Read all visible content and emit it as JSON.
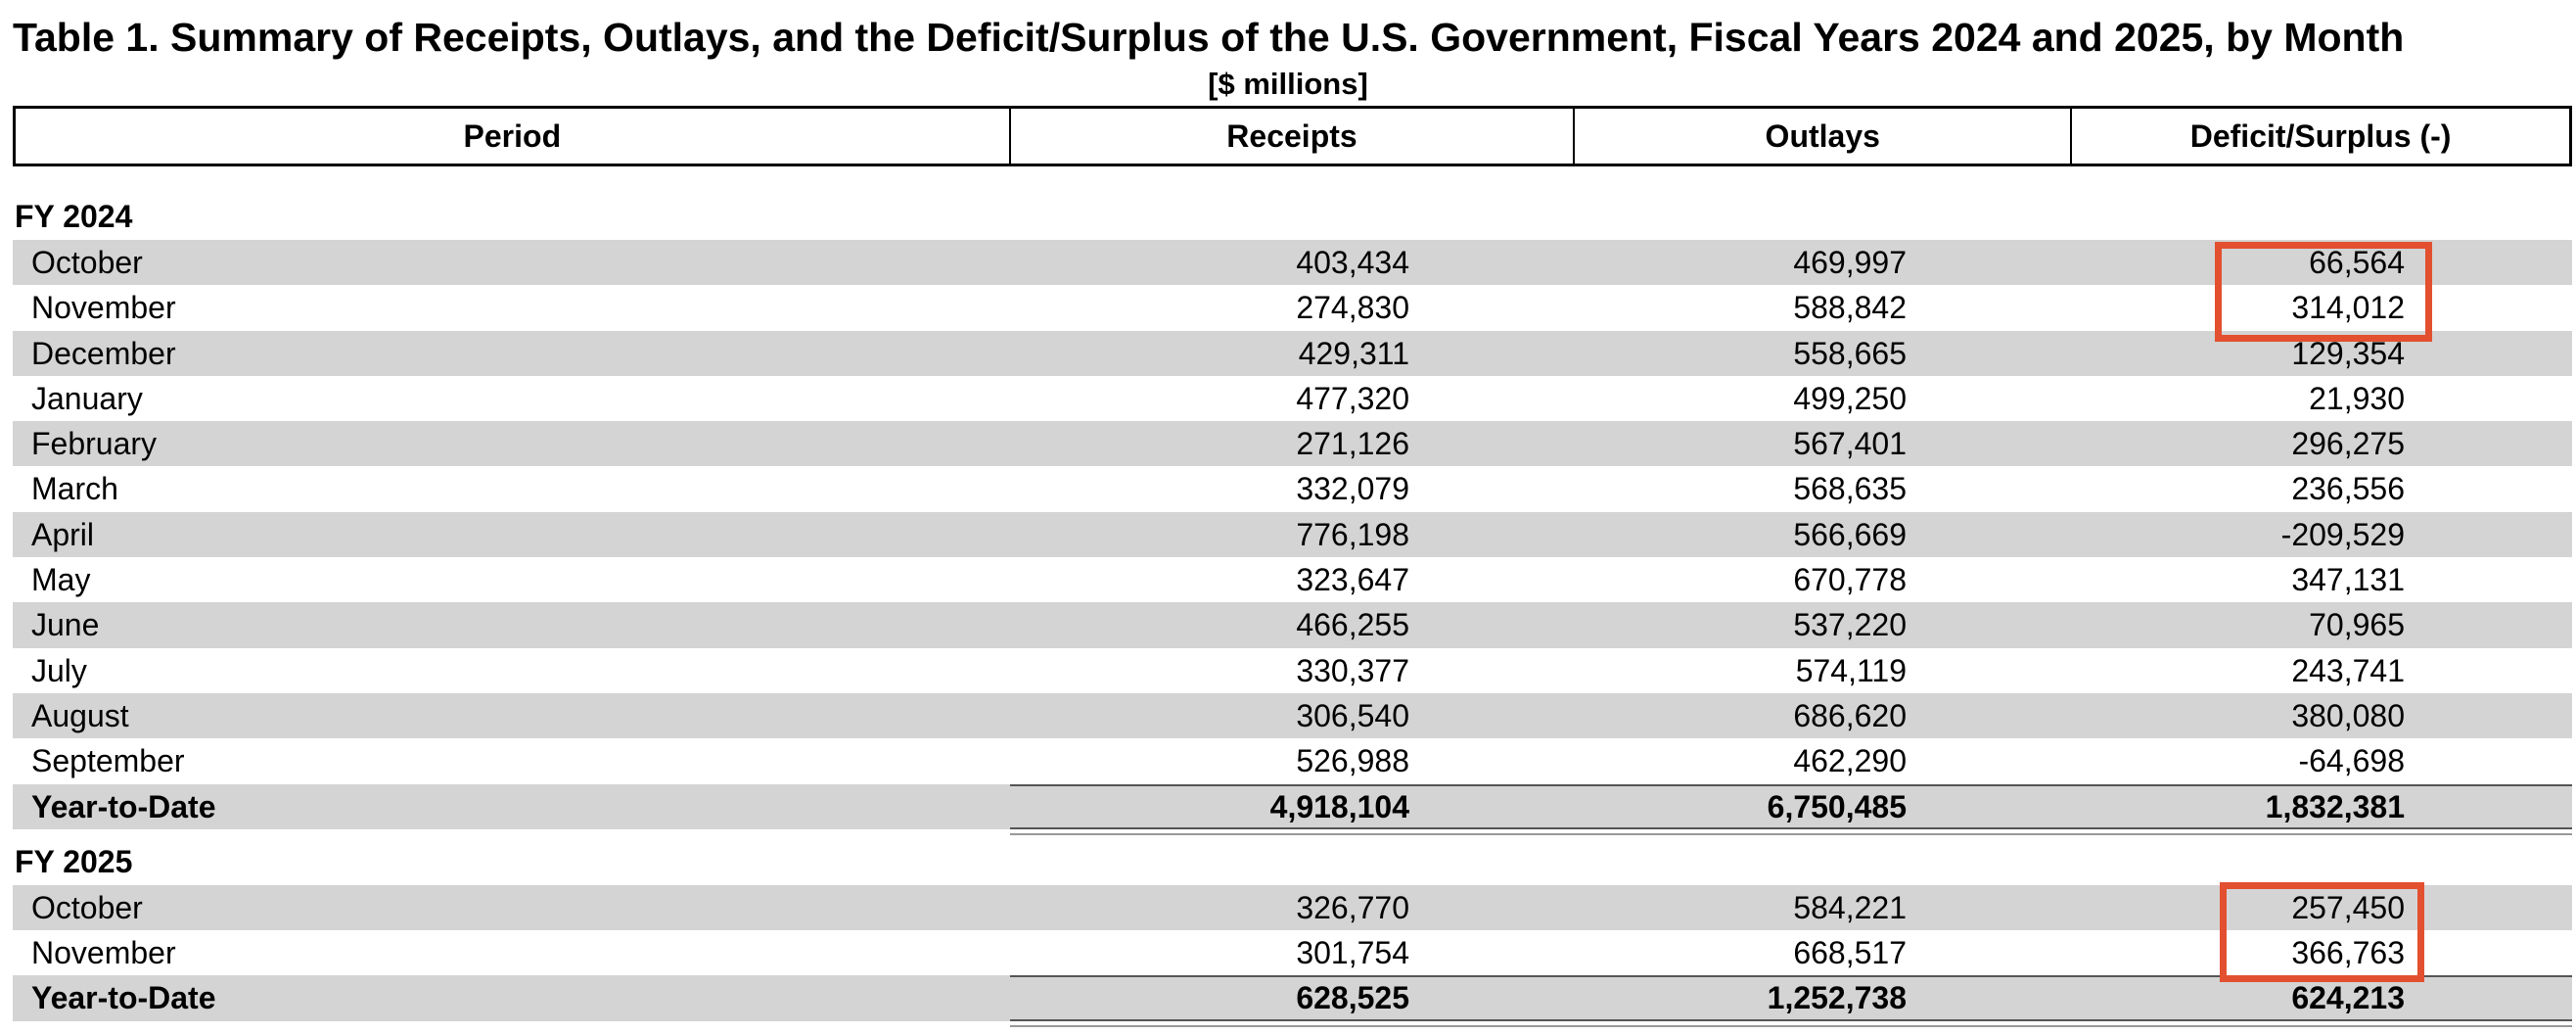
{
  "title": "Table 1. Summary of Receipts, Outlays, and the Deficit/Surplus of the U.S. Government, Fiscal Years 2024 and 2025, by Month",
  "subtitle": "[$ millions]",
  "columns": {
    "period": "Period",
    "receipts": "Receipts",
    "outlays": "Outlays",
    "deficit": "Deficit/Surplus (-)"
  },
  "fy2024": {
    "label": "FY 2024",
    "rows": [
      {
        "period": "October",
        "receipts": "403,434",
        "outlays": "469,997",
        "deficit": "66,564"
      },
      {
        "period": "November",
        "receipts": "274,830",
        "outlays": "588,842",
        "deficit": "314,012"
      },
      {
        "period": "December",
        "receipts": "429,311",
        "outlays": "558,665",
        "deficit": "129,354"
      },
      {
        "period": "January",
        "receipts": "477,320",
        "outlays": "499,250",
        "deficit": "21,930"
      },
      {
        "period": "February",
        "receipts": "271,126",
        "outlays": "567,401",
        "deficit": "296,275"
      },
      {
        "period": "March",
        "receipts": "332,079",
        "outlays": "568,635",
        "deficit": "236,556"
      },
      {
        "period": "April",
        "receipts": "776,198",
        "outlays": "566,669",
        "deficit": "-209,529"
      },
      {
        "period": "May",
        "receipts": "323,647",
        "outlays": "670,778",
        "deficit": "347,131"
      },
      {
        "period": "June",
        "receipts": "466,255",
        "outlays": "537,220",
        "deficit": "70,965"
      },
      {
        "period": "July",
        "receipts": "330,377",
        "outlays": "574,119",
        "deficit": "243,741"
      },
      {
        "period": "August",
        "receipts": "306,540",
        "outlays": "686,620",
        "deficit": "380,080"
      },
      {
        "period": "September",
        "receipts": "526,988",
        "outlays": "462,290",
        "deficit": "-64,698"
      }
    ],
    "total": {
      "period": "Year-to-Date",
      "receipts": "4,918,104",
      "outlays": "6,750,485",
      "deficit": "1,832,381"
    }
  },
  "fy2025": {
    "label": "FY 2025",
    "rows": [
      {
        "period": "October",
        "receipts": "326,770",
        "outlays": "584,221",
        "deficit": "257,450"
      },
      {
        "period": "November",
        "receipts": "301,754",
        "outlays": "668,517",
        "deficit": "366,763"
      }
    ],
    "total": {
      "period": "Year-to-Date",
      "receipts": "628,525",
      "outlays": "1,252,738",
      "deficit": "624,213"
    }
  },
  "colors": {
    "row_shade": "#d4d4d4",
    "highlight": "#e2502f"
  }
}
